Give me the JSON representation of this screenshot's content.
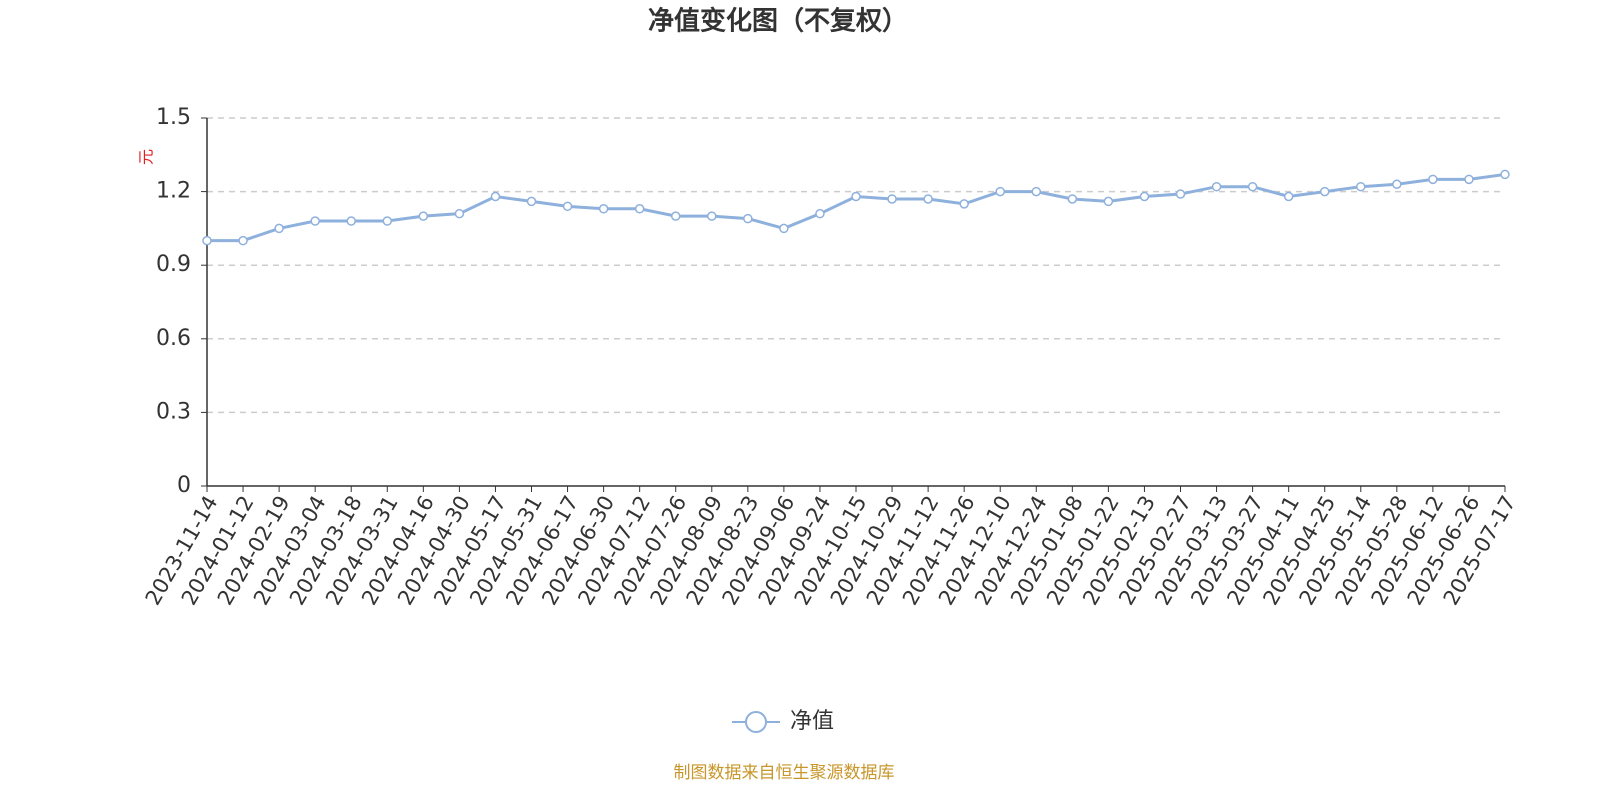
{
  "chart_data": {
    "type": "line",
    "title": "净值变化图（不复权）",
    "y_label": "元",
    "categories": [
      "2023-11-14",
      "2024-01-12",
      "2024-02-19",
      "2024-03-04",
      "2024-03-18",
      "2024-03-31",
      "2024-04-16",
      "2024-04-30",
      "2024-05-17",
      "2024-05-31",
      "2024-06-17",
      "2024-06-30",
      "2024-07-12",
      "2024-07-26",
      "2024-08-09",
      "2024-08-23",
      "2024-09-06",
      "2024-09-24",
      "2024-10-15",
      "2024-10-29",
      "2024-11-12",
      "2024-11-26",
      "2024-12-10",
      "2024-12-24",
      "2025-01-08",
      "2025-01-22",
      "2025-02-13",
      "2025-02-27",
      "2025-03-13",
      "2025-03-27",
      "2025-04-11",
      "2025-04-25",
      "2025-05-14",
      "2025-05-28",
      "2025-06-12",
      "2025-06-26",
      "2025-07-17"
    ],
    "series": [
      {
        "name": "净值",
        "color": "#8eb0dc",
        "values": [
          1.0,
          1.0,
          1.05,
          1.08,
          1.08,
          1.08,
          1.1,
          1.11,
          1.18,
          1.16,
          1.14,
          1.13,
          1.13,
          1.1,
          1.1,
          1.09,
          1.05,
          1.11,
          1.18,
          1.17,
          1.17,
          1.15,
          1.2,
          1.2,
          1.17,
          1.16,
          1.18,
          1.19,
          1.22,
          1.22,
          1.18,
          1.2,
          1.22,
          1.23,
          1.25,
          1.25,
          1.27
        ]
      }
    ],
    "ylim": [
      0,
      1.5
    ],
    "yticks": [
      0,
      0.3,
      0.6,
      0.9,
      1.2,
      1.5
    ],
    "grid": true,
    "legend": "bottom",
    "source": "制图数据来自恒生聚源数据库"
  }
}
